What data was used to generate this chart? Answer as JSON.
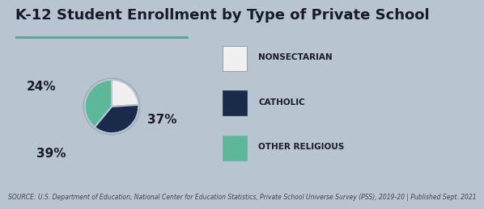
{
  "title": "K-12 Student Enrollment by Type of Private School",
  "title_fontsize": 13,
  "subtitle_line_color": "#4CAF90",
  "background_color": "#b8c4d0",
  "pie_values": [
    24,
    37,
    39
  ],
  "pie_labels": [
    "24%",
    "37%",
    "39%"
  ],
  "pie_colors": [
    "#f0f0f0",
    "#1a2a4a",
    "#5db89a"
  ],
  "pie_shadow_color": "#9aaabb",
  "legend_labels": [
    "NONSECTARIAN",
    "CATHOLIC",
    "OTHER RELIGIOUS"
  ],
  "legend_colors": [
    "#f0f0f0",
    "#1a2a4a",
    "#5db89a"
  ],
  "source_text": "SOURCE: U.S. Department of Education, National Center for Education Statistics, Private School Universe Survey (PSS), 2019-20 | Published Sept. 2021",
  "source_fontsize": 5.5,
  "source_color": "#444455"
}
